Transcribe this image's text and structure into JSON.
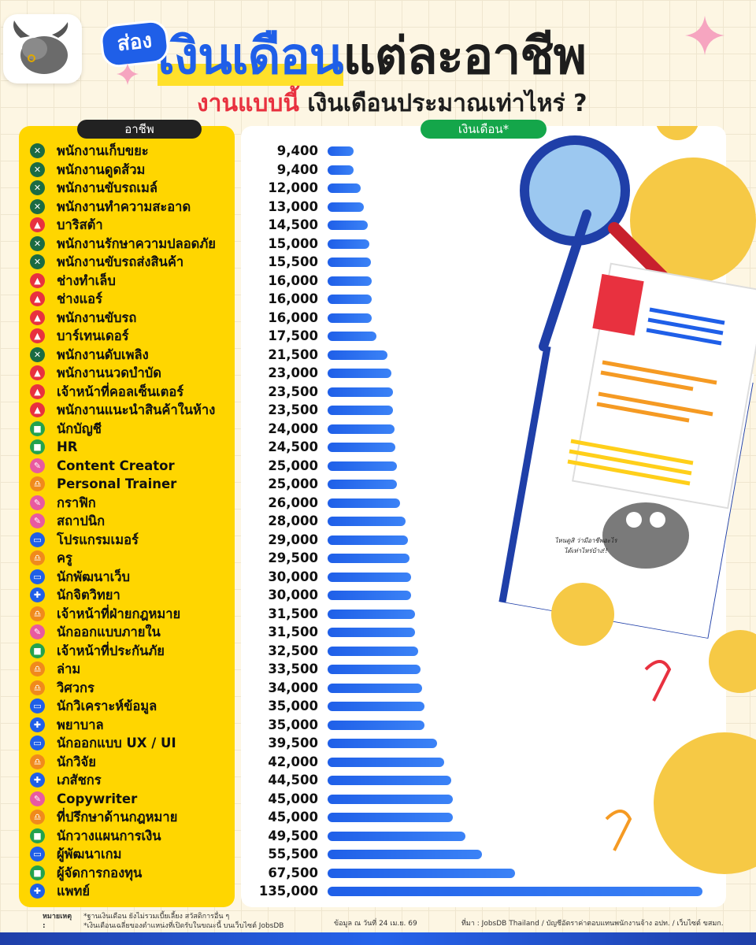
{
  "title": {
    "tag": "ส่อง",
    "highlight": "เงินเดือน",
    "rest": "แต่ละอาชีพ"
  },
  "subtitle": {
    "red": "งานแบบนี้",
    "black": " เงินเดือนประมาณเท่าไหร่ ?"
  },
  "headers": {
    "occupation": "อาชีพ",
    "salary": "เงินเดือน*"
  },
  "colors": {
    "bar": "#1f5fe8",
    "yellow_panel": "#ffd600",
    "header_green": "#14a64a",
    "icon_green": "#1b6b43",
    "icon_red": "#e8313f",
    "icon_blue": "#1f5fe8",
    "icon_pink": "#e85aa0",
    "icon_orange": "#f08a1c",
    "icon_lightgreen": "#23a24d"
  },
  "bubble_text": "ไหนดูสิ ว่ามีอาชีพอะไรได้เท่าไหร่บ้าง!!",
  "notes": {
    "label": "หมายเหตุ :",
    "line1": "*ฐานเงินเดือน ยังไม่รวมเบี้ยเลี้ยง สวัสดิการอื่น ๆ",
    "line2": "*เงินเดือนเฉลี่ยของตำแหน่งที่เปิดรับในขณะนี้ บนเว็บไซต์ JobsDB"
  },
  "as_of": "ข้อมูล ณ วันที่ 24 เม.ย. 69",
  "source": "ที่มา : JobsDB Thailand / บัญชีอัตราค่าตอบแทนพนักงานจ้าง อปท. / เว็บไซต์ ขสมก.",
  "chart_data": {
    "type": "bar",
    "orientation": "horizontal",
    "xlim": [
      0,
      135000
    ],
    "grid": false,
    "categories": [
      "พนักงานเก็บขยะ",
      "พนักงานดูดส้วม",
      "พนักงานขับรถเมล์",
      "พนักงานทำความสะอาด",
      "บาริสต้า",
      "พนักงานรักษาความปลอดภัย",
      "พนักงานขับรถส่งสินค้า",
      "ช่างทำเล็บ",
      "ช่างแอร์",
      "พนักงานขับรถ",
      "บาร์เทนเดอร์",
      "พนักงานดับเพลิง",
      "พนักงานนวดบำบัด",
      "เจ้าหน้าที่คอลเซ็นเตอร์",
      "พนักงานแนะนำสินค้าในห้าง",
      "นักบัญชี",
      "HR",
      "Content Creator",
      "Personal Trainer",
      "กราฟิก",
      "สถาปนิก",
      "โปรแกรมเมอร์",
      "ครู",
      "นักพัฒนาเว็บ",
      "นักจิตวิทยา",
      "เจ้าหน้าที่ฝ่ายกฎหมาย",
      "นักออกแบบภายใน",
      "เจ้าหน้าที่ประกันภัย",
      "ล่าม",
      "วิศวกร",
      "นักวิเคราะห์ข้อมูล",
      "พยาบาล",
      "นักออกแบบ UX / UI",
      "นักวิจัย",
      "เภสัชกร",
      "Copywriter",
      "ที่ปรึกษาด้านกฎหมาย",
      "นักวางแผนการเงิน",
      "ผู้พัฒนาเกม",
      "ผู้จัดการกองทุน",
      "แพทย์"
    ],
    "values": [
      9400,
      9400,
      12000,
      13000,
      14500,
      15000,
      15500,
      16000,
      16000,
      16000,
      17500,
      21500,
      23000,
      23500,
      23500,
      24000,
      24500,
      25000,
      25000,
      26000,
      28000,
      29000,
      29500,
      30000,
      30000,
      31500,
      31500,
      32500,
      33500,
      34000,
      35000,
      35000,
      39500,
      42000,
      44500,
      45000,
      45000,
      49500,
      55500,
      67500,
      135000
    ],
    "value_labels": [
      "9,400",
      "9,400",
      "12,000",
      "13,000",
      "14,500",
      "15,000",
      "15,500",
      "16,000",
      "16,000",
      "16,000",
      "17,500",
      "21,500",
      "23,000",
      "23,500",
      "23,500",
      "24,000",
      "24,500",
      "25,000",
      "25,000",
      "26,000",
      "28,000",
      "29,000",
      "29,500",
      "30,000",
      "30,000",
      "31,500",
      "31,500",
      "32,500",
      "33,500",
      "34,000",
      "35,000",
      "35,000",
      "39,500",
      "42,000",
      "44,500",
      "45,000",
      "45,000",
      "49,500",
      "55,500",
      "67,500",
      "135,000"
    ],
    "icons": [
      "tools-icon",
      "tools-icon",
      "tools-icon",
      "tools-icon",
      "service-bell-icon",
      "tools-icon",
      "tools-icon",
      "service-bell-icon",
      "service-bell-icon",
      "service-bell-icon",
      "service-bell-icon",
      "tools-icon",
      "service-bell-icon",
      "service-bell-icon",
      "service-bell-icon",
      "briefcase-icon",
      "briefcase-icon",
      "palette-icon",
      "scale-icon",
      "palette-icon",
      "palette-icon",
      "laptop-icon",
      "scale-icon",
      "laptop-icon",
      "microscope-icon",
      "scale-icon",
      "palette-icon",
      "briefcase-icon",
      "scale-icon",
      "scale-icon",
      "laptop-icon",
      "microscope-icon",
      "laptop-icon",
      "scale-icon",
      "microscope-icon",
      "palette-icon",
      "scale-icon",
      "briefcase-icon",
      "laptop-icon",
      "briefcase-icon",
      "microscope-icon"
    ]
  }
}
